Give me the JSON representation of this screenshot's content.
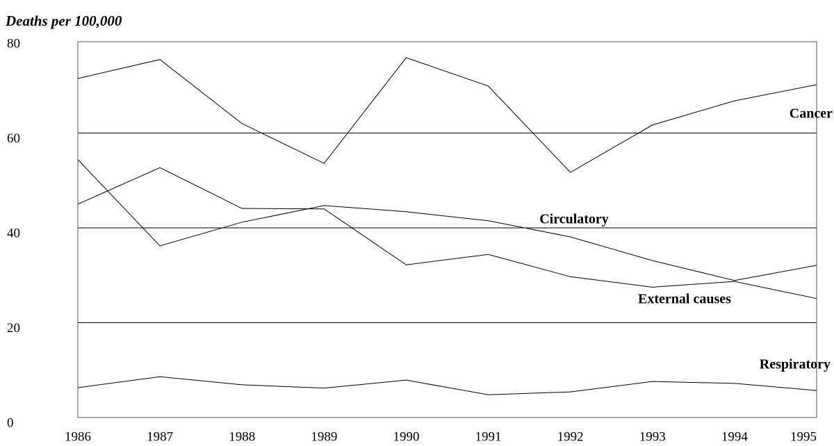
{
  "chart_data": {
    "type": "line",
    "title": "Deaths per 100,000",
    "x": [
      1986,
      1987,
      1988,
      1989,
      1990,
      1991,
      1992,
      1993,
      1994,
      1995
    ],
    "xlim": [
      1986,
      1995
    ],
    "xticks": [
      1986,
      1987,
      1988,
      1989,
      1990,
      1991,
      1992,
      1993,
      1994,
      1995
    ],
    "ylim": [
      0,
      80
    ],
    "yticks": [
      0,
      20,
      40,
      60,
      80
    ],
    "grid": true,
    "series": [
      {
        "name": "Cancer",
        "color": "#000000",
        "values": [
          71.5,
          75.5,
          62,
          53.6,
          75.9,
          69.9,
          51.7,
          61.7,
          66.8,
          70.2
        ]
      },
      {
        "name": "Circulatory",
        "color": "#000000",
        "values": [
          54.4,
          36.2,
          41.2,
          44.7,
          43.4,
          41.5,
          38.1,
          33.1,
          28.9,
          32.1
        ]
      },
      {
        "name": "External causes",
        "color": "#000000",
        "values": [
          45,
          52.7,
          44.1,
          44,
          32.2,
          34.4,
          29.7,
          27.5,
          28.7,
          25.1
        ]
      },
      {
        "name": "Respiratory",
        "color": "#000000",
        "values": [
          6.3,
          8.6,
          6.9,
          6.2,
          7.9,
          4.8,
          5.4,
          7.6,
          7.2,
          5.7
        ]
      }
    ]
  }
}
